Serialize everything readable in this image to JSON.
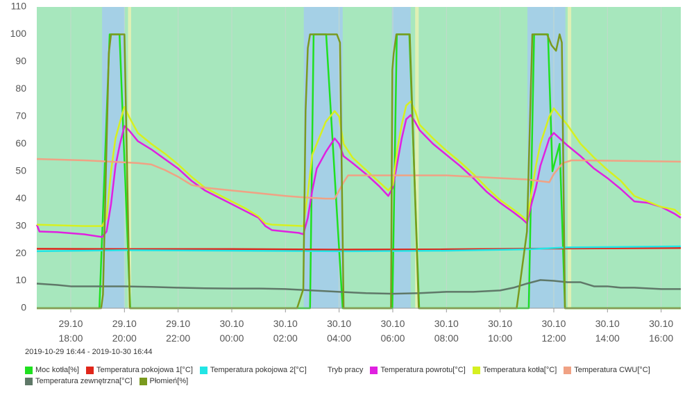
{
  "chart_data": {
    "type": "line",
    "date_range": "2019-10-29 16:44 - 2019-10-30 16:44",
    "xlim": [
      "2019-10-29 16:44",
      "2019-10-30 16:44"
    ],
    "xticks": [
      {
        "value": "2019-10-29 18:00",
        "label": "29.10 18:00"
      },
      {
        "value": "2019-10-29 20:00",
        "label": "29.10 20:00"
      },
      {
        "value": "2019-10-29 22:00",
        "label": "29.10 22:00"
      },
      {
        "value": "2019-10-30 00:00",
        "label": "30.10 00:00"
      },
      {
        "value": "2019-10-30 02:00",
        "label": "30.10 02:00"
      },
      {
        "value": "2019-10-30 04:00",
        "label": "30.10 04:00"
      },
      {
        "value": "2019-10-30 06:00",
        "label": "30.10 06:00"
      },
      {
        "value": "2019-10-30 08:00",
        "label": "30.10 08:00"
      },
      {
        "value": "2019-10-30 10:00",
        "label": "30.10 10:00"
      },
      {
        "value": "2019-10-30 12:00",
        "label": "30.10 12:00"
      },
      {
        "value": "2019-10-30 14:00",
        "label": "30.10 14:00"
      },
      {
        "value": "2019-10-30 16:00",
        "label": "30.10 16:00"
      }
    ],
    "ylim": [
      0,
      110
    ],
    "yticks": [
      0,
      10,
      20,
      30,
      40,
      50,
      60,
      70,
      80,
      90,
      100,
      110
    ],
    "grid": "x",
    "series": [
      {
        "name": "Moc kotła[%]",
        "color": "#1fe01f",
        "x": [
          "2019-10-29 16:44",
          "2019-10-29 19:04",
          "2019-10-29 19:27",
          "2019-10-29 19:49",
          "2019-10-29 20:13",
          "2019-10-30 02:55",
          "2019-10-30 03:03",
          "2019-10-30 03:31",
          "2019-10-30 04:08",
          "2019-10-30 05:59",
          "2019-10-30 06:09",
          "2019-10-30 06:37",
          "2019-10-30 06:59",
          "2019-10-30 11:04",
          "2019-10-30 11:16",
          "2019-10-30 11:47",
          "2019-10-30 11:57",
          "2019-10-30 12:13",
          "2019-10-30 12:25",
          "2019-10-30 16:44"
        ],
        "values": [
          0,
          0,
          100,
          100,
          0,
          0,
          100,
          100,
          0,
          0,
          100,
          100,
          0,
          0,
          100,
          100,
          50,
          60,
          0,
          0
        ]
      },
      {
        "name": "Temperatura pokojowa 1[°C]",
        "color": "#e0261a",
        "x": [
          "2019-10-29 16:44",
          "2019-10-29 20:00",
          "2019-10-30 00:00",
          "2019-10-30 04:00",
          "2019-10-30 08:00",
          "2019-10-30 12:00",
          "2019-10-30 16:44"
        ],
        "values": [
          21.7,
          21.6,
          21.6,
          21.4,
          21.5,
          21.8,
          22
        ]
      },
      {
        "name": "Temperatura pokojowa 2[°C]",
        "color": "#22e5e5",
        "x": [
          "2019-10-29 16:44",
          "2019-10-29 20:00",
          "2019-10-30 00:00",
          "2019-10-30 04:00",
          "2019-10-30 08:00",
          "2019-10-30 11:00",
          "2019-10-30 12:30",
          "2019-10-30 16:44"
        ],
        "values": [
          20.8,
          21.2,
          21,
          20.8,
          21,
          21.5,
          22.2,
          22.6
        ]
      },
      {
        "name": "Tryb pracy",
        "bands": [
          {
            "from": "2019-10-29 16:44",
            "to": "2019-10-30 16:44",
            "color": "#a7e7bd"
          },
          {
            "from": "2019-10-29 19:10",
            "to": "2019-10-29 20:01",
            "color": "#a5d0e6"
          },
          {
            "from": "2019-10-29 20:08",
            "to": "2019-10-29 20:15",
            "color": "#dff0b4"
          },
          {
            "from": "2019-10-30 02:41",
            "to": "2019-10-30 04:08",
            "color": "#a5d0e6"
          },
          {
            "from": "2019-10-30 05:58",
            "to": "2019-10-30 06:40",
            "color": "#a5d0e6"
          },
          {
            "from": "2019-10-30 06:50",
            "to": "2019-10-30 06:58",
            "color": "#dff0b4"
          },
          {
            "from": "2019-10-30 11:01",
            "to": "2019-10-30 12:26",
            "color": "#a5d0e6"
          },
          {
            "from": "2019-10-30 12:31",
            "to": "2019-10-30 12:39",
            "color": "#dff0b4"
          }
        ]
      },
      {
        "name": "Temperatura powrotu[°C]",
        "color": "#e020e0",
        "x": [
          "2019-10-29 16:44",
          "2019-10-29 16:50",
          "2019-10-29 17:30",
          "2019-10-29 18:30",
          "2019-10-29 19:10",
          "2019-10-29 19:20",
          "2019-10-29 19:30",
          "2019-10-29 19:40",
          "2019-10-29 19:50",
          "2019-10-29 20:00",
          "2019-10-29 20:10",
          "2019-10-29 20:30",
          "2019-10-29 21:00",
          "2019-10-29 21:30",
          "2019-10-29 22:00",
          "2019-10-29 22:30",
          "2019-10-29 23:00",
          "2019-10-29 23:30",
          "2019-10-30 00:00",
          "2019-10-30 00:30",
          "2019-10-30 01:00",
          "2019-10-30 01:15",
          "2019-10-30 01:30",
          "2019-10-30 02:00",
          "2019-10-30 02:30",
          "2019-10-30 02:40",
          "2019-10-30 02:50",
          "2019-10-30 03:00",
          "2019-10-30 03:10",
          "2019-10-30 03:20",
          "2019-10-30 03:30",
          "2019-10-30 03:50",
          "2019-10-30 04:00",
          "2019-10-30 04:10",
          "2019-10-30 04:30",
          "2019-10-30 05:00",
          "2019-10-30 05:30",
          "2019-10-30 05:50",
          "2019-10-30 06:00",
          "2019-10-30 06:10",
          "2019-10-30 06:20",
          "2019-10-30 06:30",
          "2019-10-30 06:40",
          "2019-10-30 06:50",
          "2019-10-30 07:00",
          "2019-10-30 07:30",
          "2019-10-30 08:00",
          "2019-10-30 08:30",
          "2019-10-30 09:00",
          "2019-10-30 09:30",
          "2019-10-30 10:00",
          "2019-10-30 10:30",
          "2019-10-30 10:50",
          "2019-10-30 11:00",
          "2019-10-30 11:10",
          "2019-10-30 11:20",
          "2019-10-30 11:30",
          "2019-10-30 11:40",
          "2019-10-30 11:50",
          "2019-10-30 12:00",
          "2019-10-30 12:10",
          "2019-10-30 12:30",
          "2019-10-30 13:00",
          "2019-10-30 13:30",
          "2019-10-30 14:00",
          "2019-10-30 14:30",
          "2019-10-30 15:00",
          "2019-10-30 15:30",
          "2019-10-30 16:00",
          "2019-10-30 16:30",
          "2019-10-30 16:44"
        ],
        "values": [
          30.5,
          28,
          27.8,
          27,
          26,
          28,
          38,
          52,
          60,
          66.5,
          65,
          61,
          58,
          54.5,
          51,
          46.5,
          43,
          40.5,
          38,
          35.5,
          33,
          30,
          28.5,
          28,
          27.5,
          27,
          33,
          43,
          51,
          54,
          57,
          62,
          60,
          55.5,
          53,
          49,
          44.5,
          41,
          44,
          53,
          62,
          69,
          70.5,
          68,
          65,
          60,
          56,
          52,
          47.5,
          42.5,
          38.5,
          35,
          32.5,
          31,
          38,
          44,
          52,
          57,
          62,
          64,
          62.5,
          59.5,
          55.5,
          51,
          47.5,
          43.5,
          39,
          38.5,
          37,
          34.5,
          33
        ]
      },
      {
        "name": "Temperatura kotła[°C]",
        "color": "#d6f020",
        "x": [
          "2019-10-29 16:44",
          "2019-10-29 17:30",
          "2019-10-29 18:30",
          "2019-10-29 19:10",
          "2019-10-29 19:20",
          "2019-10-29 19:30",
          "2019-10-29 19:40",
          "2019-10-29 19:50",
          "2019-10-29 20:00",
          "2019-10-29 20:10",
          "2019-10-29 20:30",
          "2019-10-29 21:00",
          "2019-10-29 21:30",
          "2019-10-29 22:00",
          "2019-10-29 22:30",
          "2019-10-29 23:00",
          "2019-10-29 23:30",
          "2019-10-30 00:00",
          "2019-10-30 00:30",
          "2019-10-30 01:00",
          "2019-10-30 01:15",
          "2019-10-30 01:30",
          "2019-10-30 02:00",
          "2019-10-30 02:40",
          "2019-10-30 02:50",
          "2019-10-30 03:00",
          "2019-10-30 03:10",
          "2019-10-30 03:20",
          "2019-10-30 03:30",
          "2019-10-30 03:50",
          "2019-10-30 04:00",
          "2019-10-30 04:10",
          "2019-10-30 04:30",
          "2019-10-30 05:00",
          "2019-10-30 05:30",
          "2019-10-30 05:50",
          "2019-10-30 06:00",
          "2019-10-30 06:10",
          "2019-10-30 06:20",
          "2019-10-30 06:30",
          "2019-10-30 06:40",
          "2019-10-30 06:50",
          "2019-10-30 07:00",
          "2019-10-30 07:30",
          "2019-10-30 08:00",
          "2019-10-30 08:30",
          "2019-10-30 09:00",
          "2019-10-30 09:30",
          "2019-10-30 10:00",
          "2019-10-30 10:30",
          "2019-10-30 10:50",
          "2019-10-30 11:00",
          "2019-10-30 11:10",
          "2019-10-30 11:20",
          "2019-10-30 11:30",
          "2019-10-30 11:40",
          "2019-10-30 11:50",
          "2019-10-30 12:00",
          "2019-10-30 12:10",
          "2019-10-30 12:30",
          "2019-10-30 13:00",
          "2019-10-30 13:30",
          "2019-10-30 14:00",
          "2019-10-30 14:30",
          "2019-10-30 15:00",
          "2019-10-30 15:30",
          "2019-10-30 16:00",
          "2019-10-30 16:30",
          "2019-10-30 16:44"
        ],
        "values": [
          30.5,
          30.3,
          30,
          30,
          33,
          50,
          62,
          68,
          73.5,
          70,
          64,
          60,
          56.5,
          52.5,
          48,
          44,
          41.5,
          39,
          36.5,
          33.5,
          31,
          30.5,
          30.3,
          30,
          42,
          56,
          60,
          64,
          68,
          72,
          70,
          60,
          55,
          50.5,
          46,
          43,
          45,
          58,
          67,
          74,
          75.5,
          72,
          67,
          62,
          57.5,
          53.5,
          49,
          44,
          39.5,
          36,
          33.5,
          32,
          42,
          52,
          60,
          65,
          70,
          73,
          71,
          67,
          60,
          55,
          50.5,
          46.5,
          41,
          39,
          37,
          36,
          34
        ]
      },
      {
        "name": "Temperatura CWU[°C]",
        "color": "#f0a284",
        "x": [
          "2019-10-29 16:44",
          "2019-10-29 18:30",
          "2019-10-29 19:30",
          "2019-10-29 20:30",
          "2019-10-29 21:00",
          "2019-10-29 21:30",
          "2019-10-29 22:00",
          "2019-10-29 22:30",
          "2019-10-29 23:00",
          "2019-10-30 00:00",
          "2019-10-30 01:00",
          "2019-10-30 02:00",
          "2019-10-30 02:40",
          "2019-10-30 03:30",
          "2019-10-30 03:50",
          "2019-10-30 04:10",
          "2019-10-30 04:20",
          "2019-10-30 05:00",
          "2019-10-30 06:00",
          "2019-10-30 08:00",
          "2019-10-30 09:00",
          "2019-10-30 10:00",
          "2019-10-30 11:00",
          "2019-10-30 11:50",
          "2019-10-30 12:00",
          "2019-10-30 12:20",
          "2019-10-30 12:40",
          "2019-10-30 13:00",
          "2019-10-30 16:44"
        ],
        "values": [
          54.5,
          54,
          53.5,
          53,
          52.5,
          50.5,
          48,
          45,
          44,
          43,
          42,
          41,
          40.5,
          40,
          40,
          46,
          48.5,
          48.5,
          48.5,
          48.5,
          48,
          47.5,
          47,
          46,
          49,
          53,
          54,
          54,
          53.5
        ]
      },
      {
        "name": "Temperatura zewnętrzna[°C]",
        "color": "#5f7868",
        "x": [
          "2019-10-29 16:44",
          "2019-10-29 17:30",
          "2019-10-29 18:00",
          "2019-10-29 19:00",
          "2019-10-29 20:00",
          "2019-10-29 21:00",
          "2019-10-29 22:00",
          "2019-10-29 23:00",
          "2019-10-30 00:00",
          "2019-10-30 01:00",
          "2019-10-30 02:00",
          "2019-10-30 03:00",
          "2019-10-30 04:00",
          "2019-10-30 05:00",
          "2019-10-30 06:00",
          "2019-10-30 07:00",
          "2019-10-30 08:00",
          "2019-10-30 09:00",
          "2019-10-30 10:00",
          "2019-10-30 10:30",
          "2019-10-30 11:00",
          "2019-10-30 11:30",
          "2019-10-30 12:00",
          "2019-10-30 12:30",
          "2019-10-30 13:00",
          "2019-10-30 13:30",
          "2019-10-30 14:00",
          "2019-10-30 14:30",
          "2019-10-30 15:00",
          "2019-10-30 16:00",
          "2019-10-30 16:44"
        ],
        "values": [
          9,
          8.5,
          8,
          8,
          8,
          7.8,
          7.5,
          7.3,
          7.2,
          7.2,
          7,
          6.5,
          6,
          5.5,
          5.3,
          5.5,
          6,
          6,
          6.5,
          7.5,
          9,
          10.3,
          10,
          9.5,
          9.5,
          8,
          8,
          7.5,
          7.5,
          7,
          7
        ]
      },
      {
        "name": "Płomień[%]",
        "color": "#7a9a1e",
        "x": [
          "2019-10-29 16:44",
          "2019-10-29 19:08",
          "2019-10-29 19:12",
          "2019-10-29 19:25",
          "2019-10-29 19:30",
          "2019-10-29 20:00",
          "2019-10-29 20:12",
          "2019-10-30 02:26",
          "2019-10-30 02:40",
          "2019-10-30 02:45",
          "2019-10-30 02:50",
          "2019-10-30 02:55",
          "2019-10-30 03:55",
          "2019-10-30 04:02",
          "2019-10-30 04:10",
          "2019-10-30 05:56",
          "2019-10-30 05:59",
          "2019-10-30 06:02",
          "2019-10-30 06:08",
          "2019-10-30 06:38",
          "2019-10-30 06:58",
          "2019-10-30 10:37",
          "2019-10-30 11:00",
          "2019-10-30 11:12",
          "2019-10-30 11:45",
          "2019-10-30 11:55",
          "2019-10-30 12:05",
          "2019-10-30 12:13",
          "2019-10-30 12:18",
          "2019-10-30 12:25",
          "2019-10-30 16:44"
        ],
        "values": [
          0,
          0,
          5,
          93,
          100,
          100,
          0,
          0,
          7,
          72,
          95,
          100,
          100,
          97,
          0,
          0,
          87,
          93,
          100,
          100,
          0,
          0,
          28,
          100,
          100,
          96,
          94,
          100,
          97,
          0,
          0
        ]
      }
    ]
  }
}
